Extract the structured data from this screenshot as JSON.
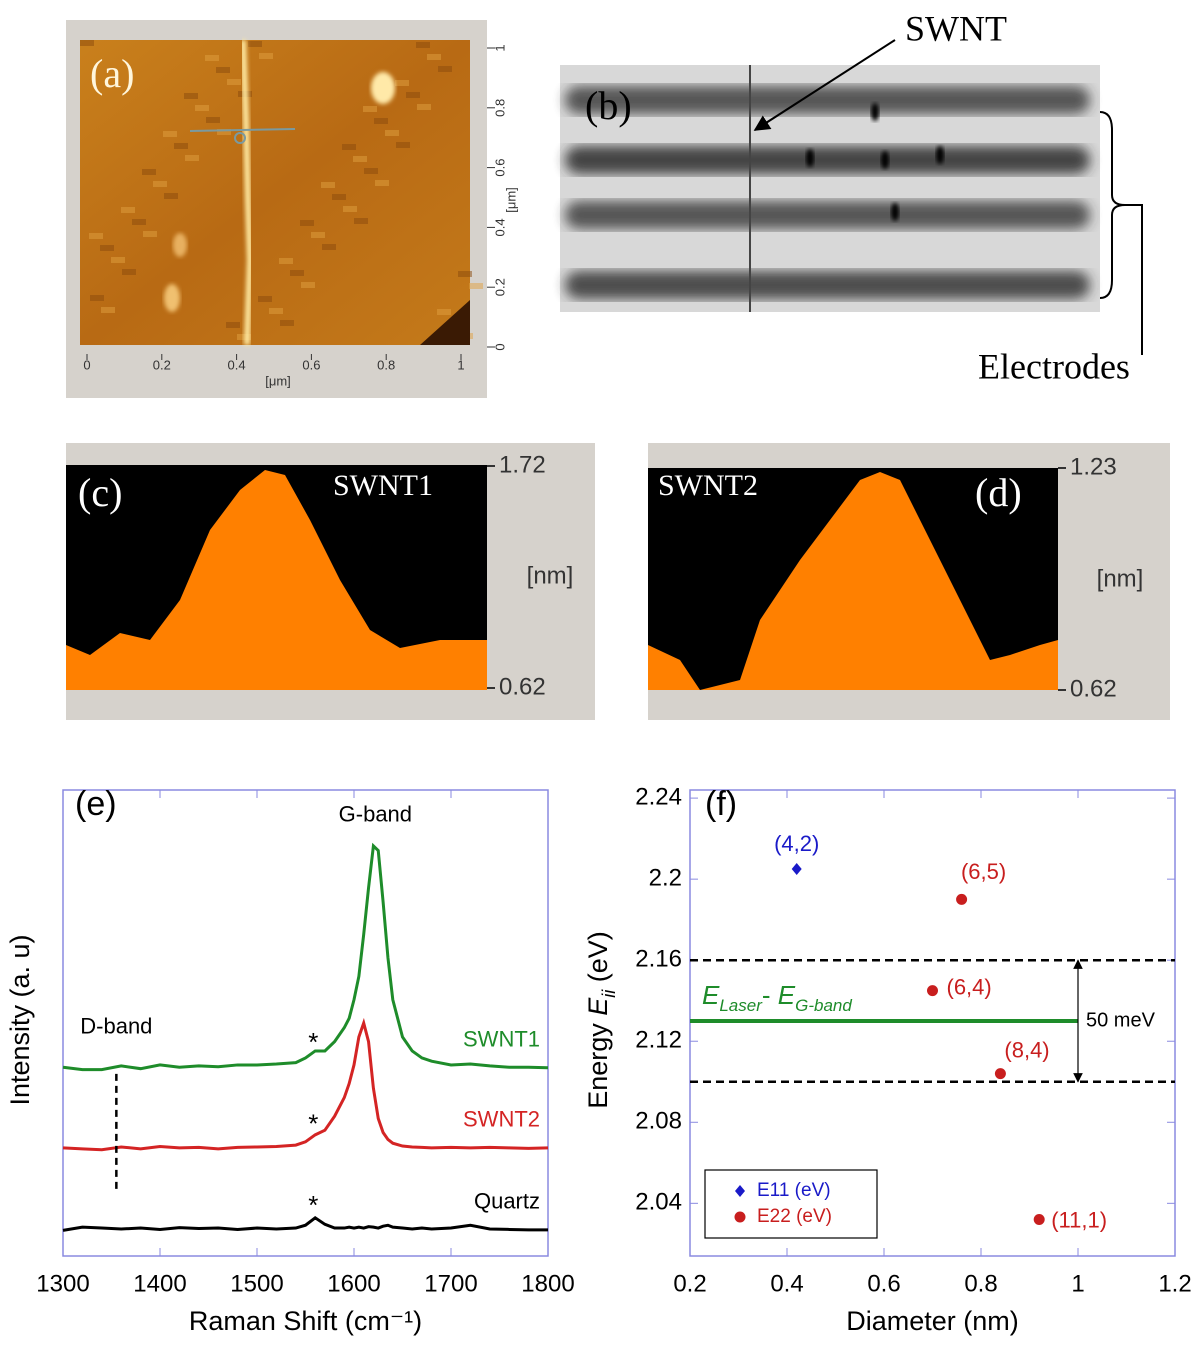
{
  "chart_data": [
    {
      "type": "image",
      "label": "(a)",
      "xlim": [
        0,
        1
      ],
      "xticks": [
        0,
        0.2,
        0.4,
        0.6,
        0.8,
        1
      ],
      "ylim": [
        0,
        1
      ],
      "yticks": [
        0,
        0.2,
        0.4,
        0.6,
        0.8,
        1
      ],
      "xlabel": "[μm]",
      "ylabel": "[μm]"
    },
    {
      "type": "image",
      "label": "(b)",
      "annotations": [
        {
          "text": "SWNT"
        },
        {
          "text": "Electrodes"
        }
      ]
    },
    {
      "type": "image",
      "label": "(c)",
      "title": "SWNT1",
      "ylim": [
        0.62,
        1.72
      ],
      "yticks": [
        0.62,
        1.72
      ],
      "ylabel": "[nm]"
    },
    {
      "type": "image",
      "label": "(d)",
      "title": "SWNT2",
      "ylim": [
        0.62,
        1.23
      ],
      "yticks": [
        0.62,
        1.23
      ],
      "ylabel": "[nm]"
    },
    {
      "type": "line",
      "label": "(e)",
      "xlabel": "Raman Shift (cm⁻¹)",
      "ylabel": "Intensity (a. u)",
      "x": [
        1300,
        1320,
        1340,
        1360,
        1380,
        1400,
        1420,
        1440,
        1460,
        1480,
        1500,
        1520,
        1540,
        1550,
        1560,
        1570,
        1580,
        1590,
        1595,
        1600,
        1605,
        1610,
        1615,
        1620,
        1625,
        1630,
        1635,
        1640,
        1650,
        1660,
        1670,
        1680,
        1700,
        1720,
        1740,
        1760,
        1780,
        1800
      ],
      "series": [
        {
          "name": "SWNT1",
          "color": "#1e8c2a",
          "values": [
            4.05,
            4.0,
            4.0,
            4.08,
            4.02,
            4.1,
            4.05,
            4.08,
            4.06,
            4.1,
            4.1,
            4.12,
            4.15,
            4.25,
            4.4,
            4.4,
            4.6,
            4.9,
            5.1,
            5.5,
            6.0,
            6.9,
            7.9,
            8.8,
            8.7,
            7.6,
            6.4,
            5.5,
            4.7,
            4.4,
            4.25,
            4.18,
            4.1,
            4.12,
            4.08,
            4.05,
            4.05,
            4.04
          ]
        },
        {
          "name": "SWNT2",
          "color": "#d42424",
          "values": [
            2.32,
            2.3,
            2.28,
            2.34,
            2.3,
            2.35,
            2.32,
            2.33,
            2.3,
            2.33,
            2.34,
            2.35,
            2.38,
            2.45,
            2.6,
            2.7,
            3.0,
            3.4,
            3.7,
            4.1,
            4.7,
            5.0,
            4.6,
            3.6,
            2.95,
            2.65,
            2.5,
            2.42,
            2.36,
            2.34,
            2.33,
            2.32,
            2.33,
            2.32,
            2.33,
            2.32,
            2.31,
            2.32
          ]
        },
        {
          "name": "Quartz",
          "color": "#000000",
          "values": [
            0.55,
            0.62,
            0.6,
            0.58,
            0.6,
            0.57,
            0.61,
            0.59,
            0.6,
            0.57,
            0.6,
            0.58,
            0.6,
            0.66,
            0.82,
            0.68,
            0.6,
            0.6,
            0.62,
            0.6,
            0.62,
            0.6,
            0.63,
            0.62,
            0.6,
            0.64,
            0.66,
            0.62,
            0.6,
            0.58,
            0.6,
            0.58,
            0.6,
            0.66,
            0.58,
            0.57,
            0.56,
            0.56
          ]
        }
      ],
      "xlim": [
        1300,
        1800
      ],
      "xticks": [
        1300,
        1400,
        1500,
        1600,
        1700,
        1800
      ],
      "ylim": [
        0,
        10
      ],
      "annotations": [
        {
          "text": "G-band",
          "x": 1622,
          "y": 9.45
        },
        {
          "text": "*",
          "x": 1558,
          "y": 4.55
        },
        {
          "text": "*",
          "x": 1558,
          "y": 2.8
        },
        {
          "text": "*",
          "x": 1558,
          "y": 1.05
        }
      ],
      "vlines": [
        {
          "x": 1355,
          "ymin": 1.44,
          "ymax": 4.0,
          "label": "D-band",
          "style": "dashed"
        }
      ]
    },
    {
      "type": "scatter",
      "label": "(f)",
      "xlabel": "Diameter (nm)",
      "ylabel": [
        {
          "text": "Energy "
        },
        {
          "text": "E",
          "italic": true
        },
        {
          "text": "ii",
          "italic": true,
          "sub": true
        },
        {
          "text": " (eV)"
        }
      ],
      "series": [
        {
          "name": "E11 (eV)",
          "color": "#1a1ac8",
          "marker": "diamond",
          "x": [
            0.42
          ],
          "values": [
            2.205
          ],
          "point_labels": [
            "(4,2)"
          ]
        },
        {
          "name": "E22 (eV)",
          "color": "#c81e1e",
          "marker": "circle",
          "x": [
            0.76,
            0.7,
            0.84,
            0.92
          ],
          "values": [
            2.19,
            2.145,
            2.104,
            2.032
          ],
          "point_labels": [
            "(6,5)",
            "(6,4)",
            "(8,4)",
            "(11,1)"
          ]
        }
      ],
      "xlim": [
        0.2,
        1.2
      ],
      "xticks": [
        0.2,
        0.4,
        0.6,
        0.8,
        1,
        1.2
      ],
      "ylim": [
        2.014,
        2.244
      ],
      "yticks": [
        2.04,
        2.08,
        2.12,
        2.16,
        2.2,
        2.24
      ],
      "hlines": [
        {
          "y": 2.16,
          "style": "dashed",
          "color": "#000000"
        },
        {
          "y": 2.1,
          "style": "dashed",
          "color": "#000000"
        },
        {
          "y": 2.13,
          "xmax": 1,
          "style": "solid",
          "color": "#1e8c2a",
          "label": [
            {
              "text": "E",
              "italic": true
            },
            {
              "text": "Laser",
              "italic": true,
              "sub": true
            },
            {
              "text": "- "
            },
            {
              "text": "E",
              "italic": true
            },
            {
              "text": "G-band",
              "italic": true,
              "sub": true
            }
          ]
        }
      ],
      "annotations": [
        {
          "text": "50 meV",
          "x": 1,
          "y1": 2.16,
          "y2": 2.1
        }
      ],
      "legend": "lower left"
    }
  ]
}
